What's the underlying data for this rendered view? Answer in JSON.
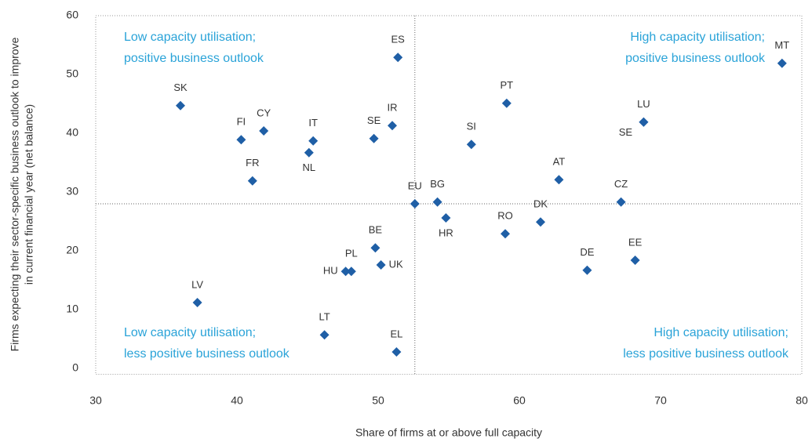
{
  "chart_data": {
    "type": "scatter",
    "x_label": "Share of firms at or above full capacity",
    "y_label": [
      "Firms expecting their sector-specific business outlook to improve",
      "in current financial year (net balance)"
    ],
    "labels": [
      "SK",
      "FI",
      "CY",
      "FR",
      "IT",
      "NL",
      "SE",
      "IR",
      "ES",
      "EU",
      "BG",
      "HR",
      "SI",
      "PT",
      "RO",
      "DK",
      "AT",
      "CZ",
      "LU",
      "SE",
      "MT",
      "DE",
      "EE",
      "BE",
      "PL",
      "HU",
      "UK",
      "LV",
      "LT",
      "EL"
    ],
    "x": [
      36.0,
      40.3,
      41.9,
      41.1,
      45.4,
      45.1,
      49.7,
      51.0,
      51.4,
      52.6,
      54.2,
      54.8,
      56.6,
      59.1,
      59.0,
      61.5,
      62.8,
      67.2,
      68.8,
      68.8,
      78.6,
      64.8,
      68.2,
      49.8,
      48.1,
      47.7,
      50.2,
      37.2,
      46.2,
      51.3
    ],
    "values": [
      44.7,
      38.9,
      40.4,
      31.9,
      38.7,
      36.7,
      39.1,
      41.3,
      52.9,
      28.0,
      28.3,
      25.6,
      38.1,
      45.1,
      22.9,
      24.9,
      32.1,
      28.3,
      41.9,
      41.9,
      51.9,
      16.7,
      18.4,
      20.5,
      16.5,
      16.5,
      17.6,
      11.2,
      5.7,
      2.8
    ],
    "color": "#1f5fa6",
    "reference_lines": {
      "x": 52.6,
      "y": 28.0
    },
    "annotations": [
      [
        "Low capacity utilisation;",
        "positive business outlook"
      ],
      [
        "High capacity utilisation;",
        "positive business outlook"
      ],
      [
        "Low capacity utilisation;",
        "less positive business outlook"
      ],
      [
        "High capacity utilisation;",
        "less positive business outlook"
      ]
    ],
    "annotation_color": "#2aa3d8",
    "xlim": [
      30,
      80
    ],
    "ylim": [
      -1,
      60
    ],
    "xticks": [
      30,
      40,
      50,
      60,
      70,
      80
    ],
    "yticks": [
      0,
      10,
      20,
      30,
      40,
      50,
      60
    ]
  }
}
